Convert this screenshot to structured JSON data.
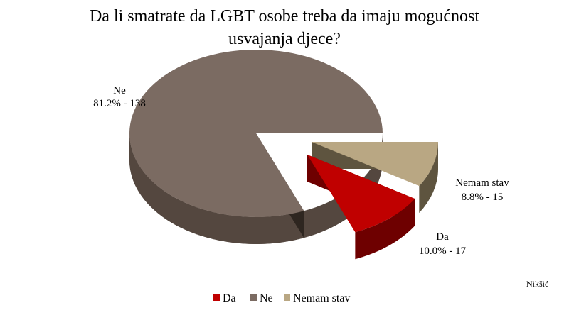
{
  "chart_data": {
    "type": "pie",
    "title_lines": [
      "Da li smatrate da LGBT osobe treba da imaju mogućnost",
      "usvajanja djece?"
    ],
    "slices": [
      {
        "name": "Da",
        "value": 17,
        "percent_label": "10.0% - 17",
        "color": "#c00000",
        "side_color": "#6e0000"
      },
      {
        "name": "Ne",
        "value": 138,
        "percent_label": "81.2% - 138",
        "color": "#7b6b62",
        "side_color": "#54473f"
      },
      {
        "name": "Nemam stav",
        "value": 15,
        "percent_label": "8.8% - 15",
        "color": "#b9a783",
        "side_color": "#5e543f"
      }
    ],
    "legend": [
      "Da",
      "Ne",
      "Nemam stav"
    ],
    "legend_position": "bottom",
    "annotation": "Nikšić"
  }
}
